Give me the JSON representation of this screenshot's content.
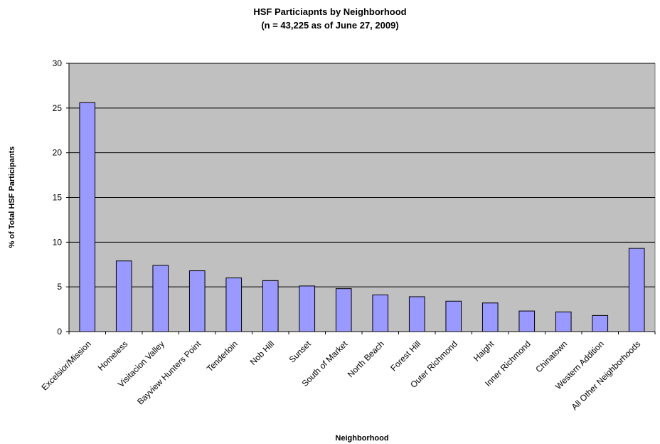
{
  "chart_data": {
    "type": "bar",
    "title": "HSF Particiapnts by Neighborhood",
    "subtitle": "(n = 43,225 as of June 27, 2009)",
    "xlabel": "Neighborhood",
    "ylabel": "% of Total HSF Participants",
    "ylim": [
      0,
      30
    ],
    "yticks": [
      0,
      5,
      10,
      15,
      20,
      25,
      30
    ],
    "grid": true,
    "legend": "none",
    "categories": [
      "Excelsior/Mission",
      "Homeless",
      "Visitacion Valley",
      "Bayview Hunters Point",
      "Tenderloin",
      "Nob Hill",
      "Sunset",
      "South of Market",
      "North Beach",
      "Forest Hill",
      "Outer Richmond",
      "Haight",
      "Inner Richmond",
      "Chinatown",
      "Western Addition",
      "All Other Neighborhoods"
    ],
    "values": [
      25.6,
      7.9,
      7.4,
      6.8,
      6.0,
      5.7,
      5.1,
      4.8,
      4.1,
      3.9,
      3.4,
      3.2,
      2.3,
      2.2,
      1.8,
      9.3
    ],
    "colors": {
      "bar_fill": "#9999FF",
      "bar_stroke": "#000000",
      "plot_background": "#C0C0C0",
      "gridline": "#000000"
    }
  }
}
